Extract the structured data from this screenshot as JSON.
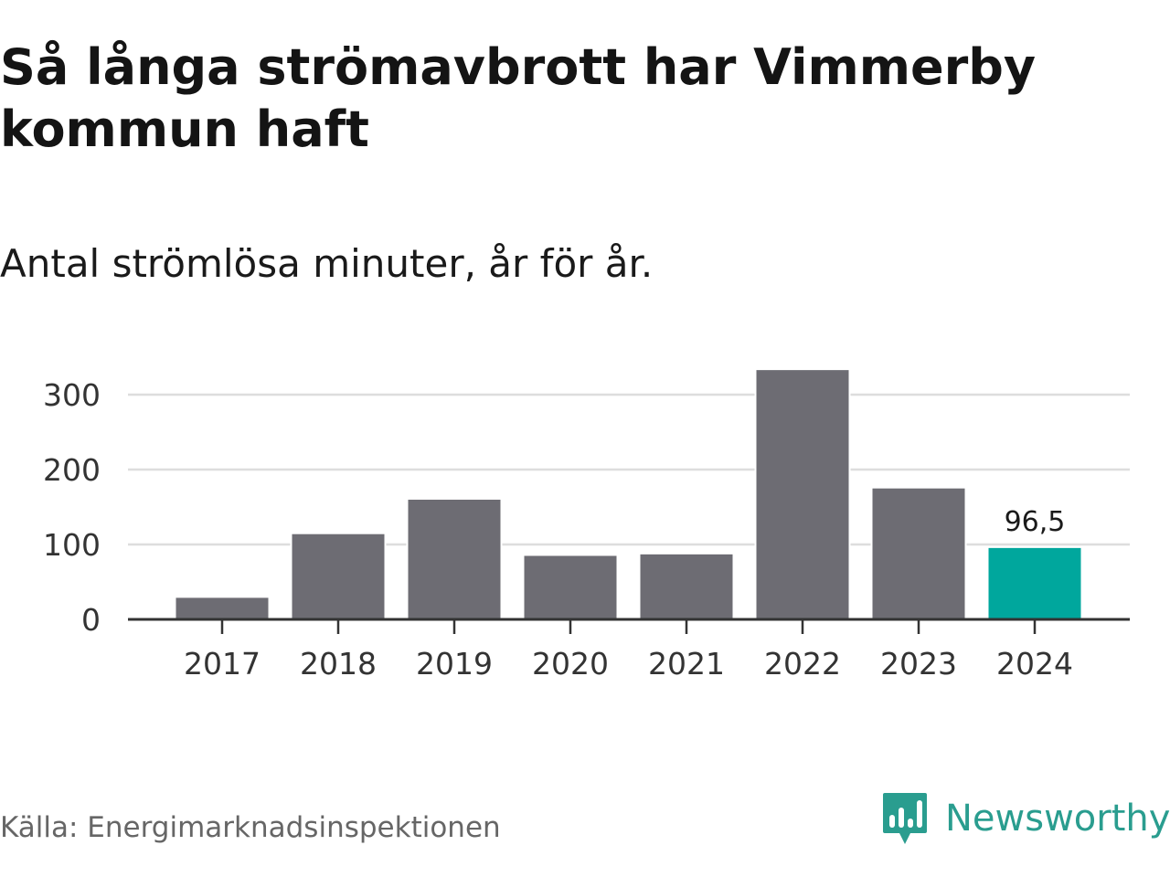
{
  "title": "Så långa strömavbrott har Vimmerby kommun haft",
  "subtitle": "Antal strömlösa minuter, år för år.",
  "source": "Källa: Energimarknadsinspektionen",
  "brand": {
    "name": "Newsworthy",
    "color": "#2a9d8f",
    "icon": "newsworthy-logo-icon"
  },
  "colors": {
    "bar": "#6d6c73",
    "highlight": "#00a79d",
    "grid": "#dddddd",
    "axis": "#333333"
  },
  "chart_data": {
    "type": "bar",
    "categories": [
      "2017",
      "2018",
      "2019",
      "2020",
      "2021",
      "2022",
      "2023",
      "2024"
    ],
    "values": [
      30,
      115,
      161,
      86,
      88,
      334,
      176,
      96.5
    ],
    "highlight_index": 7,
    "data_labels": [
      {
        "category": "2024",
        "text": "96,5"
      }
    ],
    "yticks": [
      0,
      100,
      200,
      300
    ],
    "ylim": [
      0,
      340
    ],
    "grid": true,
    "title": "Så långa strömavbrott har Vimmerby kommun haft",
    "subtitle": "Antal strömlösa minuter, år för år.",
    "xlabel": "",
    "ylabel": ""
  }
}
